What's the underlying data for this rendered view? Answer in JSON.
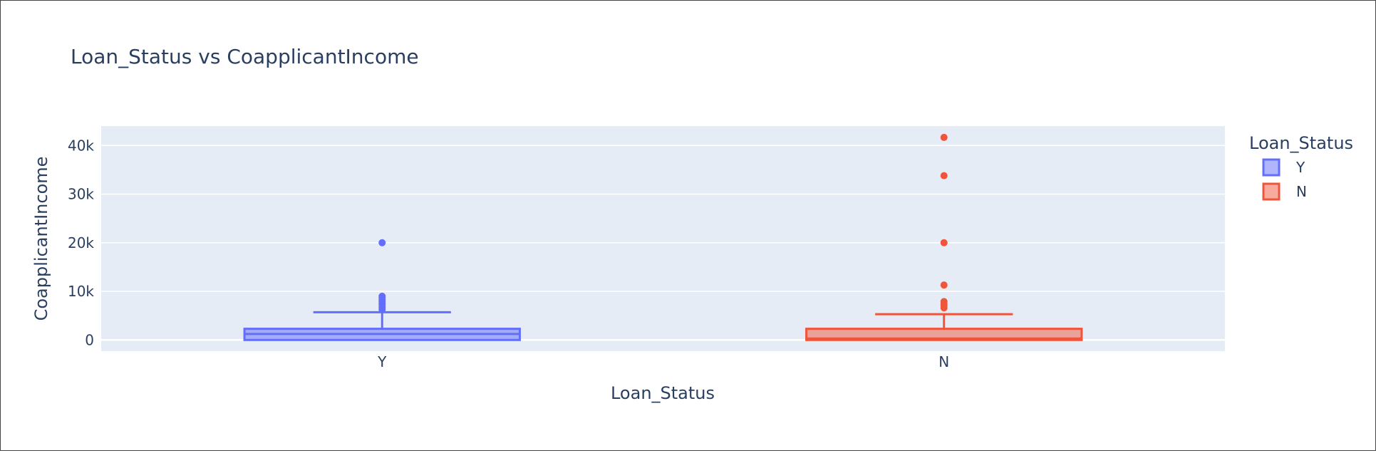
{
  "chart_data": {
    "type": "box",
    "title": "Loan_Status vs CoapplicantIncome",
    "xlabel": "Loan_Status",
    "ylabel": "CoapplicantIncome",
    "categories": [
      "Y",
      "N"
    ],
    "ylim": [
      -2300,
      44000
    ],
    "yticks": [
      {
        "value": 0,
        "label": "0"
      },
      {
        "value": 10000,
        "label": "10k"
      },
      {
        "value": 20000,
        "label": "20k"
      },
      {
        "value": 30000,
        "label": "30k"
      },
      {
        "value": 40000,
        "label": "40k"
      }
    ],
    "grid": true,
    "legend": {
      "title": "Loan_Status",
      "placement": "top-right"
    },
    "series": [
      {
        "name": "Y",
        "color": "#636efa",
        "min": 0,
        "q1": 0,
        "median": 1240,
        "q3": 2300,
        "upper_fence": 5700,
        "outliers": [
          6250,
          6700,
          7100,
          7500,
          7900,
          8300,
          8700,
          9000,
          20000
        ]
      },
      {
        "name": "N",
        "color": "#ef553b",
        "min": 0,
        "q1": 0,
        "median": 300,
        "q3": 2300,
        "upper_fence": 5300,
        "outliers": [
          6600,
          7100,
          7500,
          7900,
          11300,
          20000,
          33800,
          41667
        ]
      }
    ]
  }
}
